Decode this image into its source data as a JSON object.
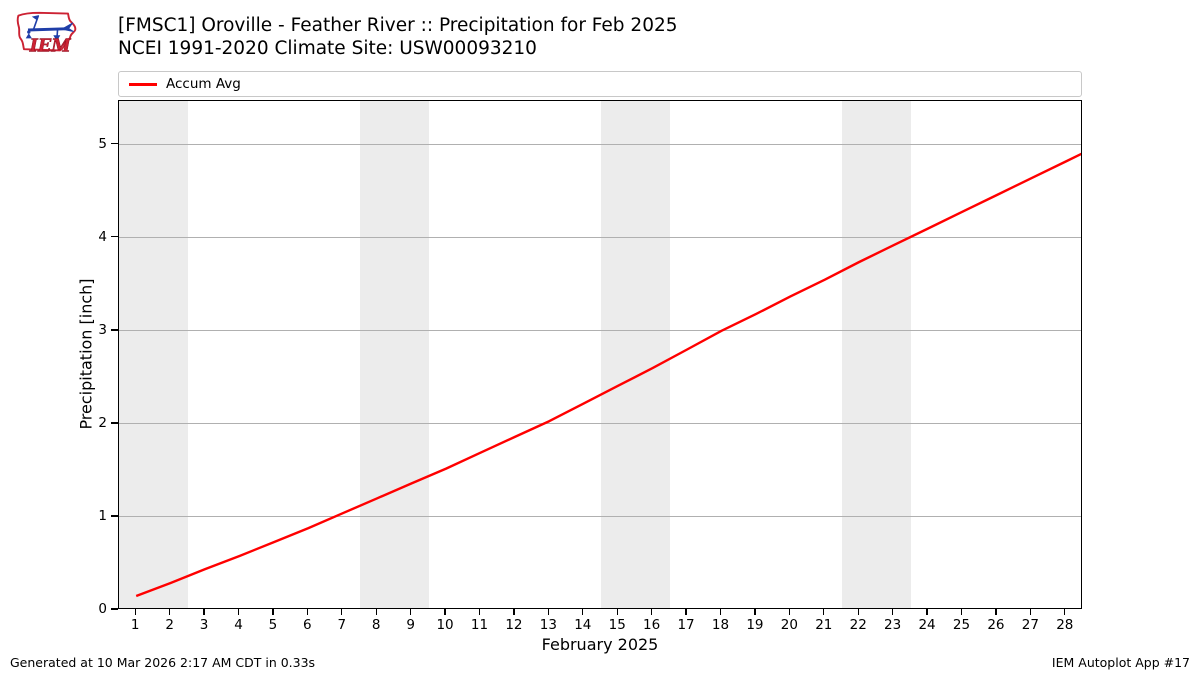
{
  "header": {
    "title_line1": "[FMSC1] Oroville - Feather River :: Precipitation for Feb 2025",
    "title_line2": "NCEI 1991-2020 Climate Site: USW00093210",
    "logo_text": "IEM"
  },
  "legend": {
    "items": [
      {
        "label": "Accum Avg",
        "color": "#ff0000"
      }
    ]
  },
  "footer": {
    "generated": "Generated at 10 Mar 2026 2:17 AM CDT in 0.33s",
    "app": "IEM Autoplot App #17"
  },
  "colors": {
    "line": "#ff0000",
    "grid": "#b0b0b0",
    "weekend_band": "#ececec",
    "spine": "#000000",
    "legend_border": "#c8c8c8",
    "logo_red": "#cc2233",
    "logo_blue": "#1f3ea8"
  },
  "chart_data": {
    "type": "line",
    "title": "[FMSC1] Oroville - Feather River :: Precipitation for Feb 2025",
    "subtitle": "NCEI 1991-2020 Climate Site: USW00093210",
    "xlabel": "February 2025",
    "ylabel": "Precipitation [inch]",
    "xlim": [
      0.5,
      28.5
    ],
    "ylim": [
      0,
      5.47
    ],
    "xticks": [
      1,
      2,
      3,
      4,
      5,
      6,
      7,
      8,
      9,
      10,
      11,
      12,
      13,
      14,
      15,
      16,
      17,
      18,
      19,
      20,
      21,
      22,
      23,
      24,
      25,
      26,
      27,
      28
    ],
    "yticks": [
      0,
      1,
      2,
      3,
      4,
      5
    ],
    "grid": "horizontal",
    "legend_position": "top",
    "weekend_bands_x": [
      [
        0.5,
        2.5
      ],
      [
        7.5,
        9.5
      ],
      [
        14.5,
        16.5
      ],
      [
        21.5,
        23.5
      ]
    ],
    "series": [
      {
        "name": "Accum Avg",
        "color": "#ff0000",
        "x": [
          1,
          2,
          3,
          4,
          5,
          6,
          7,
          8,
          9,
          10,
          11,
          12,
          13,
          14,
          15,
          16,
          17,
          18,
          19,
          20,
          21,
          22,
          23,
          24,
          25,
          26,
          27,
          28
        ],
        "values": [
          0.15,
          0.29,
          0.44,
          0.58,
          0.73,
          0.88,
          1.04,
          1.2,
          1.36,
          1.52,
          1.69,
          1.86,
          2.03,
          2.22,
          2.41,
          2.6,
          2.8,
          3.0,
          3.18,
          3.37,
          3.55,
          3.74,
          3.92,
          4.1,
          4.28,
          4.46,
          4.64,
          4.82
        ],
        "end_extension": {
          "x": 28.5,
          "value": 4.91
        }
      }
    ]
  }
}
